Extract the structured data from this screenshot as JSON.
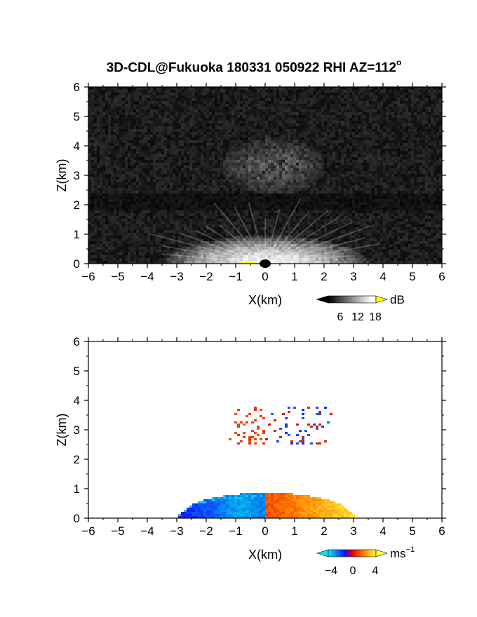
{
  "figure": {
    "title": "3D-CDL@Fukuoka 180331 050922 RHI AZ=112",
    "title_suffix": "o"
  },
  "chart_data": [
    {
      "type": "heatmap",
      "quantity": "backscatter intensity",
      "xlabel": "X(km)",
      "ylabel": "Z(km)",
      "xlim": [
        -6,
        6
      ],
      "ylim": [
        0,
        6
      ],
      "xticks": [
        -6,
        -5,
        -4,
        -3,
        -2,
        -1,
        0,
        1,
        2,
        3,
        4,
        5,
        6
      ],
      "yticks": [
        0,
        1,
        2,
        3,
        4,
        5,
        6
      ],
      "colorbar": {
        "unit": "dB",
        "ticks": [
          6,
          12,
          18
        ],
        "range": [
          0,
          20
        ],
        "colormap": "grayscale",
        "colors": {
          "low": "#000000",
          "high": "#ffffff",
          "over": "#ffff00"
        }
      },
      "features": [
        {
          "desc": "near-ground strong echo",
          "x_range": [
            -3.5,
            3.5
          ],
          "z_range": [
            0,
            1.0
          ],
          "peak_dB": 18
        },
        {
          "desc": "upper layer echo",
          "x_range": [
            -1.5,
            2.0
          ],
          "z_range": [
            2.4,
            4.3
          ],
          "peak_dB": 10
        }
      ]
    },
    {
      "type": "heatmap",
      "quantity": "Doppler velocity",
      "xlabel": "X(km)",
      "ylabel": "Z(km)",
      "xlim": [
        -6,
        6
      ],
      "ylim": [
        0,
        6
      ],
      "xticks": [
        -6,
        -5,
        -4,
        -3,
        -2,
        -1,
        0,
        1,
        2,
        3,
        4,
        5,
        6
      ],
      "yticks": [
        0,
        1,
        2,
        3,
        4,
        5,
        6
      ],
      "colorbar": {
        "unit": "ms",
        "unit_exp": "−1",
        "ticks": [
          -4,
          0,
          4
        ],
        "range": [
          -5,
          5
        ],
        "colormap": "cyan-blue-red-yellow",
        "colors": {
          "under": "#00e8e8",
          "neg": "#1010ff",
          "zero": "#e00000",
          "pos": "#ffff40"
        }
      },
      "features": [
        {
          "desc": "negative velocity region",
          "x_range": [
            -3.0,
            0.0
          ],
          "z_range": [
            0,
            0.9
          ],
          "velocity": -4
        },
        {
          "desc": "positive velocity region",
          "x_range": [
            0.0,
            3.0
          ],
          "z_range": [
            0,
            0.9
          ],
          "velocity": 4
        },
        {
          "desc": "upper scattered returns",
          "x_range": [
            -1.3,
            2.2
          ],
          "z_range": [
            2.5,
            3.8
          ],
          "velocity_range": [
            -3,
            2
          ]
        }
      ]
    }
  ],
  "axis_text": {
    "p1_xlabel": "X(km)",
    "p1_ylabel": "Z(km)",
    "p1_cb_unit": "dB",
    "p1_cb_t1": "6",
    "p1_cb_t2": "12",
    "p1_cb_t3": "18",
    "p2_xlabel": "X(km)",
    "p2_ylabel": "Z(km)",
    "p2_cb_unit": "ms",
    "p2_cb_unit_exp": "−1",
    "p2_cb_t1": "−4",
    "p2_cb_t2": "0",
    "p2_cb_t3": "4"
  }
}
